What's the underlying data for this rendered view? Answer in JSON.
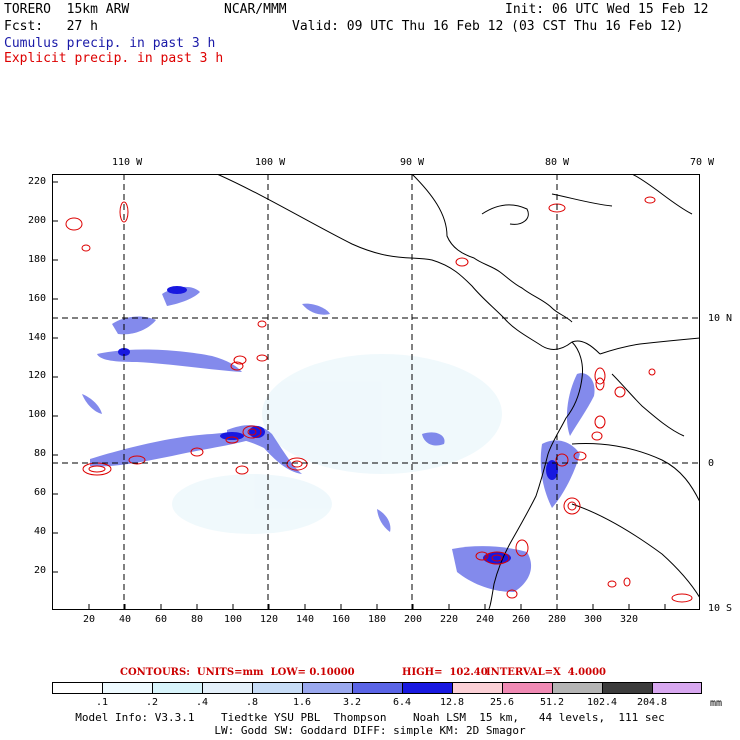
{
  "header": {
    "model": "TORERO  15km ARW",
    "org": "NCAR/MMM",
    "init": "Init: 06 UTC Wed 15 Feb 12",
    "fcst": "Fcst:   27 h",
    "valid": "Valid: 09 UTC Thu 16 Feb 12 (03 CST Thu 16 Feb 12)",
    "cumulus": "Cumulus precip. in past 3 h",
    "explicit": "Explicit precip. in past 3 h"
  },
  "colors": {
    "cumulus_title": "#1a1aa8",
    "explicit_title": "#dd0000",
    "contour": "#dd0000"
  },
  "map": {
    "top_lon_labels": [
      "110 W",
      "100 W",
      "90 W",
      "80 W",
      "70 W"
    ],
    "right_lat_labels": [
      "10 N",
      "0",
      "10 S"
    ],
    "y_ticks": [
      "220",
      "200",
      "180",
      "160",
      "140",
      "120",
      "100",
      "80",
      "60",
      "40",
      "20"
    ],
    "x_ticks": [
      "20",
      "40",
      "60",
      "80",
      "100",
      "120",
      "140",
      "160",
      "180",
      "200",
      "220",
      "240",
      "260",
      "280",
      "300",
      "320"
    ]
  },
  "contours": {
    "units_label": "CONTOURS:  UNITS=mm  LOW= 0.10000",
    "high_label": "HIGH=  102.40",
    "interval_label": "INTERVAL=X  4.0000"
  },
  "colorbar": {
    "labels": [
      ".1",
      ".2",
      ".4",
      ".8",
      "1.6",
      "3.2",
      "6.4",
      "12.8",
      "25.6",
      "51.2",
      "102.4",
      "204.8"
    ],
    "unit": "mm",
    "colors": [
      "#ffffff",
      "#eefaff",
      "#d8f4fb",
      "#e4f0fa",
      "#c7dcf6",
      "#9aa8ee",
      "#5a64e6",
      "#1818e0",
      "#fbd0d6",
      "#f08ab4",
      "#b4b4b4",
      "#3c3c3c",
      "#d8a8f0"
    ]
  },
  "model_info": {
    "line1": "Model Info: V3.3.1    Tiedtke YSU PBL  Thompson    Noah LSM  15 km,   44 levels,  111 sec",
    "line2": "LW: Godd SW: Goddard DIFF: simple KM: 2D Smagor"
  }
}
